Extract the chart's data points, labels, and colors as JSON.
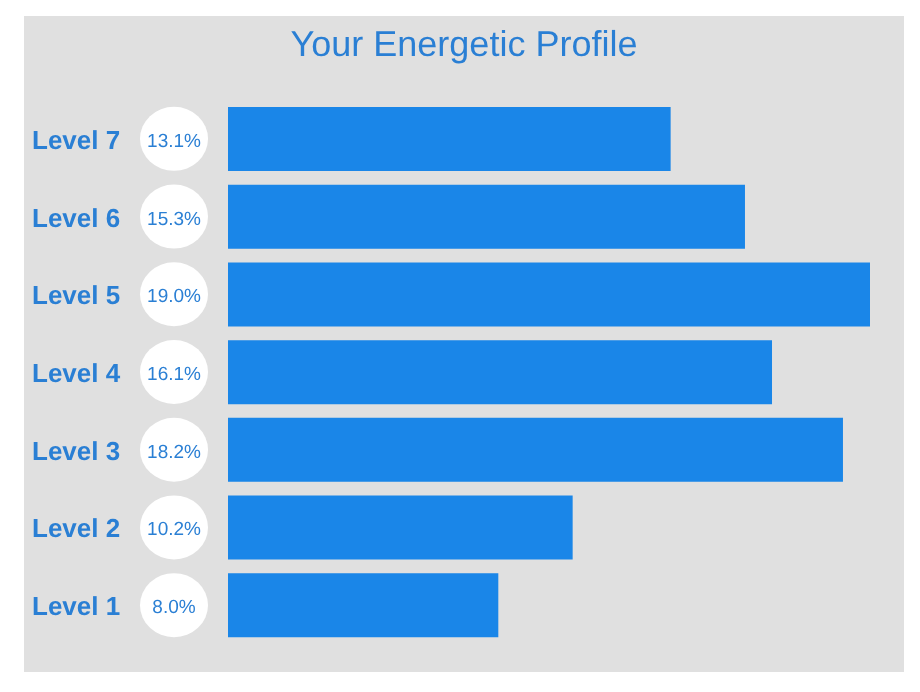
{
  "chart_data": {
    "type": "bar",
    "orientation": "horizontal",
    "title": "Your Energetic Profile",
    "categories": [
      "Level 7",
      "Level 6",
      "Level 5",
      "Level 4",
      "Level 3",
      "Level 2",
      "Level 1"
    ],
    "values": [
      13.1,
      15.3,
      19.0,
      16.1,
      18.2,
      10.2,
      8.0
    ],
    "value_labels": [
      "13.1%",
      "15.3%",
      "19.0%",
      "16.1%",
      "18.2%",
      "10.2%",
      "8.0%"
    ],
    "color": "#1a86e8",
    "tick_labels": "y"
  }
}
